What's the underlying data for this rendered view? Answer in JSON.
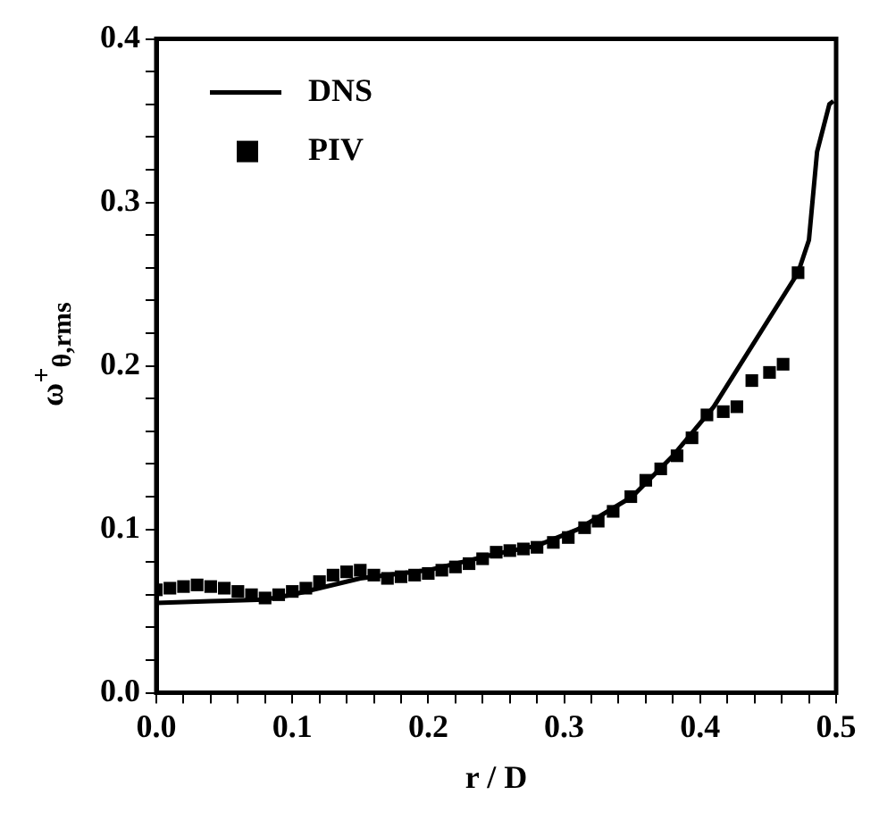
{
  "chart_data": {
    "type": "line",
    "xlabel": "r / D",
    "ylabel": "ω$^{+}$$_{θ,rms}$",
    "legend": "top left",
    "grid": false,
    "xlim": [
      0,
      0.5
    ],
    "ylim": [
      0,
      0.4
    ],
    "xticks": [
      {
        "value": 0,
        "label": "0.0"
      },
      {
        "value": 0.02,
        "label": null
      },
      {
        "value": 0.04,
        "label": null
      },
      {
        "value": 0.06,
        "label": null
      },
      {
        "value": 0.08,
        "label": null
      },
      0.1,
      {
        "value": 0.12,
        "label": null
      },
      {
        "value": 0.14,
        "label": null
      },
      {
        "value": 0.16,
        "label": null
      },
      {
        "value": 0.18,
        "label": null
      },
      0.2,
      {
        "value": 0.22,
        "label": null
      },
      {
        "value": 0.24,
        "label": null
      },
      {
        "value": 0.26,
        "label": null
      },
      {
        "value": 0.28,
        "label": null
      },
      0.3,
      {
        "value": 0.32,
        "label": null
      },
      {
        "value": 0.34,
        "label": null
      },
      {
        "value": 0.36,
        "label": null
      },
      {
        "value": 0.38,
        "label": null
      },
      0.4,
      {
        "value": 0.42,
        "label": null
      },
      {
        "value": 0.44,
        "label": null
      },
      {
        "value": 0.46,
        "label": null
      },
      {
        "value": 0.48,
        "label": null
      },
      0.5
    ],
    "yticks": [
      {
        "value": 0,
        "label": "0.0"
      },
      {
        "value": 0.02,
        "label": null
      },
      {
        "value": 0.04,
        "label": null
      },
      {
        "value": 0.06,
        "label": null
      },
      {
        "value": 0.08,
        "label": null
      },
      0.1,
      {
        "value": 0.12,
        "label": null
      },
      {
        "value": 0.14,
        "label": null
      },
      {
        "value": 0.16,
        "label": null
      },
      {
        "value": 0.18,
        "label": null
      },
      0.2,
      {
        "value": 0.22,
        "label": null
      },
      {
        "value": 0.24,
        "label": null
      },
      {
        "value": 0.26,
        "label": null
      },
      {
        "value": 0.28,
        "label": null
      },
      0.3,
      {
        "value": 0.32,
        "label": null
      },
      {
        "value": 0.34,
        "label": null
      },
      {
        "value": 0.36,
        "label": null
      },
      {
        "value": 0.38,
        "label": null
      },
      0.4
    ],
    "series": [
      {
        "name": "DNS",
        "color": "#000000",
        "marker": "none",
        "line_style": "solid",
        "x": [
          0,
          0.04,
          0.08,
          0.1,
          0.15,
          0.2,
          0.25,
          0.28,
          0.31,
          0.35,
          0.38,
          0.41,
          0.472,
          0.48,
          0.486,
          0.495,
          0.498
        ],
        "values": [
          0.055,
          0.056,
          0.057,
          0.06,
          0.07,
          0.075,
          0.085,
          0.09,
          0.1,
          0.12,
          0.145,
          0.175,
          0.257,
          0.277,
          0.331,
          0.36,
          0.362
        ]
      },
      {
        "name": "PIV",
        "type": "scatter",
        "color": "#000000",
        "marker": "square",
        "x": [
          0,
          0.01,
          0.02,
          0.03,
          0.04,
          0.05,
          0.06,
          0.07,
          0.08,
          0.09,
          0.1,
          0.11,
          0.12,
          0.13,
          0.14,
          0.15,
          0.16,
          0.17,
          0.18,
          0.19,
          0.2,
          0.21,
          0.22,
          0.23,
          0.24,
          0.25,
          0.26,
          0.27,
          0.28,
          0.292,
          0.303,
          0.315,
          0.325,
          0.336,
          0.349,
          0.36,
          0.371,
          0.383,
          0.394,
          0.405,
          0.417,
          0.427,
          0.438,
          0.451,
          0.461,
          0.472
        ],
        "values": [
          0.063,
          0.064,
          0.065,
          0.066,
          0.065,
          0.064,
          0.062,
          0.06,
          0.058,
          0.06,
          0.062,
          0.064,
          0.068,
          0.072,
          0.074,
          0.075,
          0.072,
          0.07,
          0.071,
          0.072,
          0.073,
          0.075,
          0.077,
          0.079,
          0.082,
          0.086,
          0.087,
          0.088,
          0.089,
          0.092,
          0.095,
          0.101,
          0.105,
          0.111,
          0.12,
          0.13,
          0.137,
          0.145,
          0.156,
          0.17,
          0.172,
          0.175,
          0.191,
          0.196,
          0.201,
          0.257
        ]
      }
    ]
  }
}
